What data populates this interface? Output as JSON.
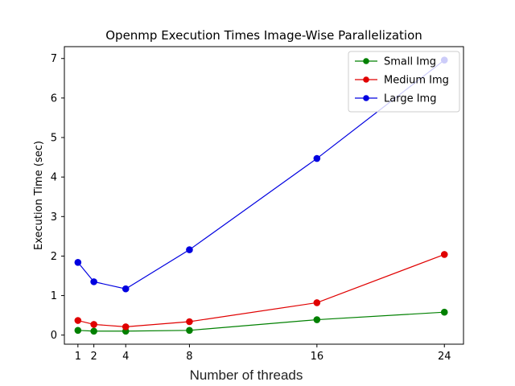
{
  "chart_data": {
    "type": "line",
    "title": "Openmp Execution Times Image-Wise Parallelization",
    "xlabel": "Number of threads",
    "ylabel": "Execution Time (sec)",
    "x": [
      1,
      2,
      4,
      8,
      16,
      24
    ],
    "x_ticks": [
      1,
      2,
      4,
      8,
      16,
      24
    ],
    "y_ticks": [
      0,
      1,
      2,
      3,
      4,
      5,
      6,
      7
    ],
    "xlim": [
      0.15,
      25.2
    ],
    "ylim": [
      -0.23,
      7.3
    ],
    "grid": false,
    "legend_position": "top-right",
    "series": [
      {
        "name": "Small Img",
        "color": "#008000",
        "values": [
          0.12,
          0.1,
          0.1,
          0.12,
          0.39,
          0.58
        ]
      },
      {
        "name": "Medium Img",
        "color": "#e00000",
        "values": [
          0.37,
          0.27,
          0.21,
          0.34,
          0.82,
          2.04
        ]
      },
      {
        "name": "Large Img",
        "color": "#0000e0",
        "values": [
          1.84,
          1.35,
          1.17,
          2.16,
          4.47,
          6.96
        ]
      }
    ]
  }
}
